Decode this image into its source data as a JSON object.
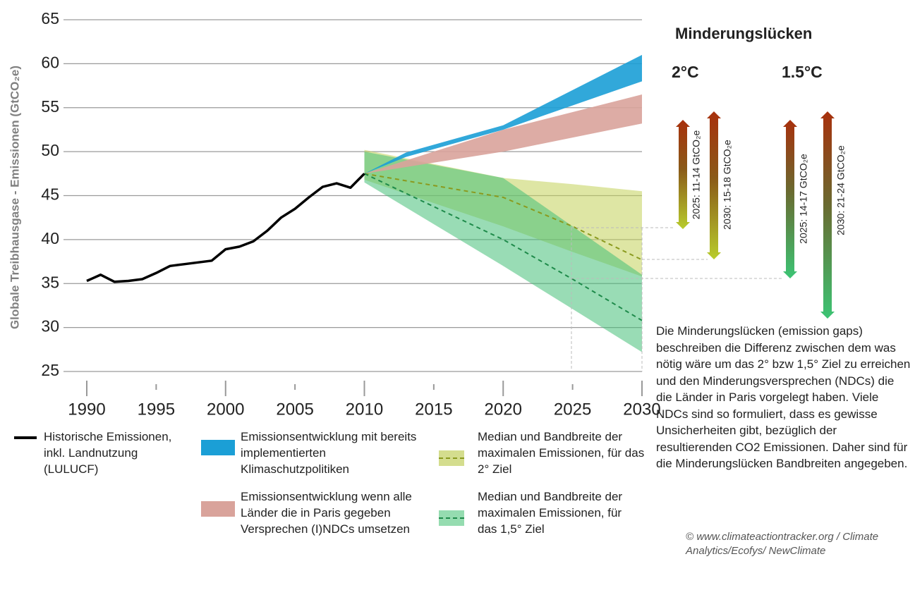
{
  "chart_data": {
    "type": "line",
    "y_label": "Globale Treibhausgase - Emissionen (GtCO₂e)",
    "xlim": [
      1990,
      2030
    ],
    "xticks": [
      1990,
      1995,
      2000,
      2005,
      2010,
      2015,
      2020,
      2025,
      2030
    ],
    "ylim": [
      25,
      65
    ],
    "yticks": [
      25,
      30,
      35,
      40,
      45,
      50,
      55,
      60,
      65
    ],
    "grid": true,
    "series": [
      {
        "name": "Historische Emissionen, inkl. Landnutzung (LULUCF)",
        "kind": "line",
        "color": "#000000",
        "x": [
          1990,
          1991,
          1992,
          1993,
          1994,
          1995,
          1996,
          1997,
          1998,
          1999,
          2000,
          2001,
          2002,
          2003,
          2004,
          2005,
          2006,
          2007,
          2008,
          2009,
          2010
        ],
        "values": [
          35.3,
          36.0,
          35.2,
          35.3,
          35.5,
          36.2,
          37.0,
          37.2,
          37.4,
          37.6,
          38.9,
          39.2,
          39.8,
          41.0,
          42.5,
          43.5,
          44.8,
          46.0,
          46.4,
          45.9,
          47.5
        ]
      },
      {
        "name": "Median und Bandbreite der maximalen Emissionen, für das 2° Ziel",
        "kind": "band",
        "color": "#c3d15a",
        "median_color": "#8a9a1e",
        "x": [
          2010,
          2020,
          2025,
          2030
        ],
        "low": [
          46.8,
          41.5,
          38.6,
          35.8
        ],
        "high": [
          50.2,
          47.0,
          46.3,
          45.5
        ],
        "median": [
          47.5,
          44.8,
          41.5,
          37.7
        ]
      },
      {
        "name": "Median und Bandbreite der maximalen Emissionen, für das 1,5° Ziel",
        "kind": "band",
        "color": "#45c078",
        "median_color": "#1e8a4a",
        "x": [
          2010,
          2020,
          2025,
          2030
        ],
        "low": [
          46.5,
          37.0,
          32.1,
          27.2
        ],
        "high": [
          50.0,
          47.0,
          41.5,
          36.0
        ],
        "median": [
          47.5,
          40.0,
          35.5,
          30.8
        ]
      },
      {
        "name": "Emissionsentwicklung wenn alle Länder die in Paris gegeben Versprechen (I)NDCs umsetzen",
        "kind": "band",
        "color": "#d9a39b",
        "x": [
          2010,
          2020,
          2030
        ],
        "low": [
          47.5,
          50.0,
          53.2
        ],
        "high": [
          47.5,
          52.5,
          56.5
        ]
      },
      {
        "name": "Emissionsentwicklung mit bereits implementierten Klimaschutzpolitiken",
        "kind": "band",
        "color": "#1b9fd6",
        "x": [
          2010,
          2013,
          2020,
          2030
        ],
        "low": [
          47.5,
          49.4,
          52.5,
          58.0
        ],
        "high": [
          47.5,
          49.9,
          53.0,
          61.0
        ]
      }
    ],
    "gap_panel": {
      "title": "Minderungslücken",
      "columns": [
        {
          "label": "2°C",
          "items": [
            "2025: 11-14 GtCO₂e",
            "2030: 15-18 GtCO₂e"
          ]
        },
        {
          "label": "1.5°C",
          "items": [
            "2025: 14-17 GtCO₂e",
            "2030: 21-24 GtCO₂e"
          ]
        }
      ]
    },
    "description": "Die Minderungslücken (emission gaps) beschreiben die Differenz zwischen dem was nötig wäre um das 2° bzw 1,5° Ziel zu erreichen und den Minderungsversprechen (NDCs) die die Länder in Paris vorgelegt haben. Viele NDCs sind so formuliert, dass es gewisse Unsicherheiten gibt, bezüglich der resultierenden CO2 Emissionen. Daher sind für die Minderungslücken Bandbreiten angegeben.",
    "source": "© www.climateactiontracker.org / Climate Analytics/Ecofys/ NewClimate"
  }
}
